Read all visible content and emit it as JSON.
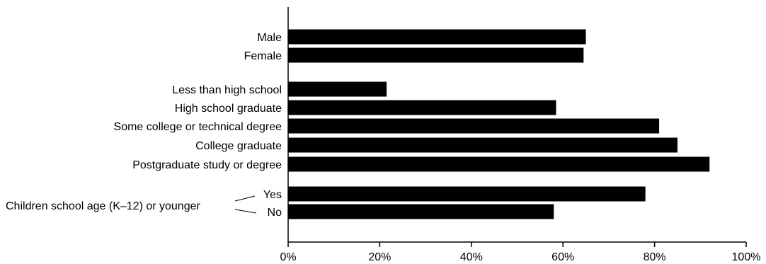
{
  "chart_data": {
    "type": "bar",
    "orientation": "horizontal",
    "title": "",
    "xlabel": "",
    "ylabel": "",
    "xlim": [
      0,
      100
    ],
    "x_ticks": [
      "0%",
      "20%",
      "40%",
      "60%",
      "80%",
      "100%"
    ],
    "grid": false,
    "legend": "none",
    "bar_color": "#000000",
    "groups": [
      {
        "label": "",
        "categories": [
          "Male",
          "Female"
        ],
        "values": [
          65,
          64.5
        ]
      },
      {
        "label": "",
        "categories": [
          "Less than high school",
          "High school graduate",
          "Some college or technical degree",
          "College graduate",
          "Postgraduate study or degree"
        ],
        "values": [
          21.5,
          58.5,
          81,
          85,
          92
        ]
      },
      {
        "label": "Children school age (K–12) or younger",
        "categories": [
          "Yes",
          "No"
        ],
        "values": [
          78,
          58
        ]
      }
    ]
  }
}
